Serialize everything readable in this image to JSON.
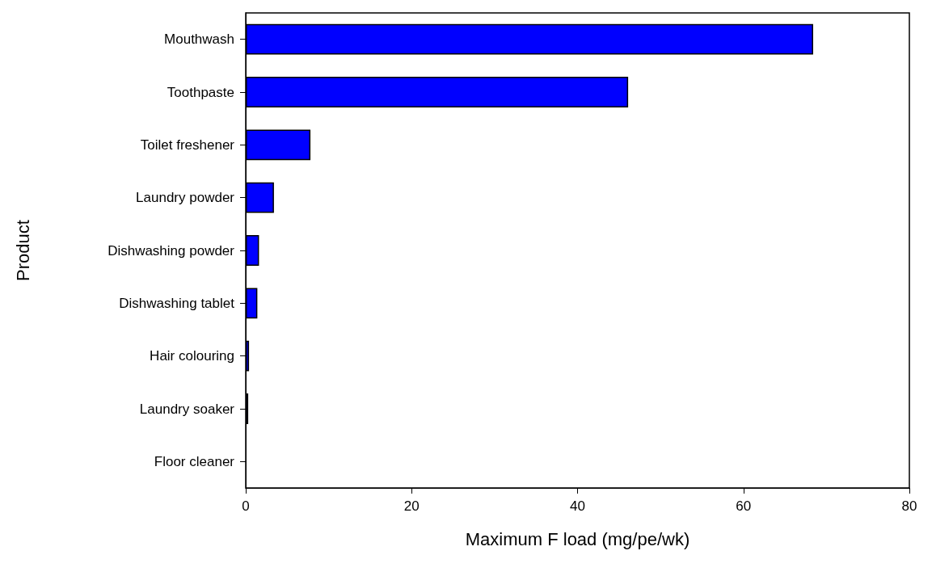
{
  "chart_data": {
    "type": "bar",
    "orientation": "horizontal",
    "xlabel": "Maximum F load (mg/pe/wk)",
    "ylabel": "Product",
    "categories": [
      "Mouthwash",
      "Toothpaste",
      "Toilet freshener",
      "Laundry powder",
      "Dishwashing powder",
      "Dishwashing tablet",
      "Hair colouring",
      "Laundry soaker",
      "Floor cleaner"
    ],
    "values": [
      68.4,
      46.1,
      7.8,
      3.4,
      1.6,
      1.4,
      0.4,
      0.3,
      0
    ],
    "color": "#0000ff",
    "xlim": [
      0,
      80
    ],
    "xticks": [
      0,
      20,
      40,
      60,
      80
    ],
    "grid": false
  }
}
